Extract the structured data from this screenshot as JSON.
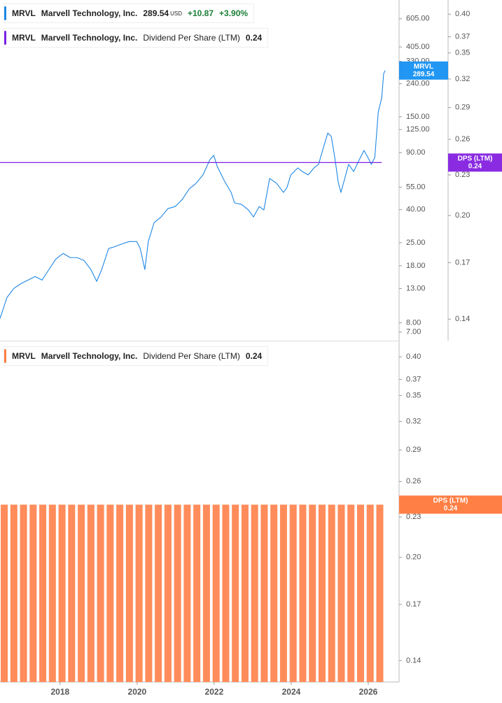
{
  "chart_data": [
    {
      "type": "line",
      "log_scale": true,
      "grid": false,
      "legend": [
        {
          "ticker": "MRVL",
          "name": "Marvell Technology, Inc.",
          "last": 289.54,
          "currency": "USD",
          "change": "+10.87",
          "change_pct": "+3.90%",
          "color": "#1e88e5"
        },
        {
          "ticker": "MRVL",
          "name": "Marvell Technology, Inc.",
          "metric": "Dividend Per Share (LTM)",
          "last": 0.24,
          "color": "#7a22e6"
        }
      ],
      "series": [
        {
          "name": "MRVL",
          "color": "#1e88e5",
          "x": [
            2016.44,
            2016.62,
            2016.8,
            2016.99,
            2017.17,
            2017.35,
            2017.53,
            2017.71,
            2017.89,
            2018.08,
            2018.26,
            2018.44,
            2018.62,
            2018.8,
            2018.95,
            2019.08,
            2019.26,
            2019.44,
            2019.62,
            2019.8,
            2019.99,
            2020.08,
            2020.2,
            2020.29,
            2020.44,
            2020.62,
            2020.8,
            2020.99,
            2021.17,
            2021.35,
            2021.53,
            2021.71,
            2021.89,
            2021.99,
            2022.08,
            2022.26,
            2022.44,
            2022.53,
            2022.71,
            2022.89,
            2023.02,
            2023.17,
            2023.29,
            2023.44,
            2023.62,
            2023.8,
            2023.89,
            2023.99,
            2024.17,
            2024.29,
            2024.44,
            2024.59,
            2024.71,
            2024.84,
            2024.95,
            2025.04,
            2025.13,
            2025.22,
            2025.29,
            2025.39,
            2025.49,
            2025.62,
            2025.75,
            2025.89,
            2025.99,
            2026.08,
            2026.17,
            2026.26,
            2026.35,
            2026.4,
            2026.44
          ],
          "values": [
            8.49,
            11.45,
            13.04,
            13.99,
            14.68,
            15.45,
            14.68,
            17.05,
            19.8,
            21.46,
            20.22,
            20.22,
            19.41,
            17.05,
            14.41,
            17.05,
            23.0,
            23.7,
            24.65,
            25.4,
            25.4,
            23.0,
            17.05,
            25.4,
            33.25,
            36.04,
            40.62,
            41.85,
            46.21,
            53.68,
            58.18,
            65.6,
            81.6,
            86.7,
            73.9,
            60.5,
            51.1,
            44.0,
            43.1,
            39.8,
            36.04,
            41.85,
            39.8,
            62.4,
            58.18,
            51.1,
            54.8,
            65.6,
            72.4,
            68.8,
            65.6,
            72.4,
            76.2,
            97.6,
            119.1,
            113.4,
            84.1,
            59.3,
            51.1,
            62.4,
            76.2,
            68.8,
            79.9,
            92.9,
            84.1,
            76.2,
            84.1,
            160.6,
            196.2,
            277.8,
            289.54
          ]
        },
        {
          "name": "Dividend Per Share (LTM)",
          "color": "#7a22e6",
          "axis": "y2",
          "x": [
            2016.44,
            2026.35
          ],
          "values": [
            0.24,
            0.24
          ]
        }
      ],
      "xlim": [
        2016.44,
        2026.8
      ],
      "ylim": [
        6.2,
        790
      ],
      "yticks": [
        {
          "value": 605,
          "label": "605.00"
        },
        {
          "value": 405,
          "label": "405.00"
        },
        {
          "value": 330,
          "label": "330.00"
        },
        {
          "value": 240,
          "label": "240.00"
        },
        {
          "value": 150,
          "label": "150.00"
        },
        {
          "value": 125,
          "label": "125.00"
        },
        {
          "value": 90,
          "label": "90.00"
        },
        {
          "value": 55,
          "label": "55.00"
        },
        {
          "value": 40,
          "label": "40.00"
        },
        {
          "value": 25,
          "label": "25.00"
        },
        {
          "value": 18,
          "label": "18.00"
        },
        {
          "value": 13,
          "label": "13.00"
        },
        {
          "value": 8,
          "label": "8.00"
        },
        {
          "value": 7,
          "label": "7.00"
        }
      ],
      "y2lim": [
        0.13,
        0.42
      ],
      "y2ticks": [
        {
          "value": 0.4,
          "label": "0.40"
        },
        0.37,
        0.35,
        0.32,
        0.29,
        0.26,
        0.23,
        {
          "value": 0.2,
          "label": "0.20"
        },
        0.17,
        0.14
      ],
      "badges": [
        {
          "label": "MRVL",
          "value": 289.54,
          "axis": "y",
          "color": "#2196f3"
        },
        {
          "label": "DPS (LTM)",
          "value": 0.24,
          "axis": "y2",
          "color": "#8a2be2"
        }
      ]
    },
    {
      "type": "bar",
      "log_scale": true,
      "grid": false,
      "legend": [
        {
          "ticker": "MRVL",
          "name": "Marvell Technology, Inc.",
          "metric": "Dividend Per Share (LTM)",
          "last": 0.24,
          "color": "#ff7f45"
        }
      ],
      "series": [
        {
          "name": "Dividend Per Share (LTM)",
          "color": "#ff8c5a",
          "x": [
            2016.55,
            2016.8,
            2017.05,
            2017.3,
            2017.55,
            2017.8,
            2018.05,
            2018.3,
            2018.55,
            2018.8,
            2019.05,
            2019.3,
            2019.55,
            2019.8,
            2020.05,
            2020.3,
            2020.55,
            2020.8,
            2021.05,
            2021.3,
            2021.55,
            2021.8,
            2022.05,
            2022.3,
            2022.55,
            2022.8,
            2023.05,
            2023.3,
            2023.55,
            2023.8,
            2024.05,
            2024.3,
            2024.55,
            2024.8,
            2025.05,
            2025.3,
            2025.55,
            2025.8,
            2026.05,
            2026.3
          ],
          "values": [
            0.24,
            0.24,
            0.24,
            0.24,
            0.24,
            0.24,
            0.24,
            0.24,
            0.24,
            0.24,
            0.24,
            0.24,
            0.24,
            0.24,
            0.24,
            0.24,
            0.24,
            0.24,
            0.24,
            0.24,
            0.24,
            0.24,
            0.24,
            0.24,
            0.24,
            0.24,
            0.24,
            0.24,
            0.24,
            0.24,
            0.24,
            0.24,
            0.24,
            0.24,
            0.24,
            0.24,
            0.24,
            0.24,
            0.24,
            0.24
          ]
        }
      ],
      "xlim": [
        2016.44,
        2026.8
      ],
      "xticks": [
        2018,
        2020,
        2022,
        2024,
        2026
      ],
      "ylim": [
        0.13,
        0.42
      ],
      "yticks": [
        {
          "value": 0.4,
          "label": "0.40"
        },
        0.37,
        0.35,
        0.32,
        0.29,
        0.26,
        0.23,
        {
          "value": 0.2,
          "label": "0.20"
        },
        0.17,
        0.14
      ],
      "badges": [
        {
          "label": "DPS (LTM)",
          "value": 0.24,
          "axis": "y",
          "color": "#ff7f45"
        }
      ]
    }
  ]
}
